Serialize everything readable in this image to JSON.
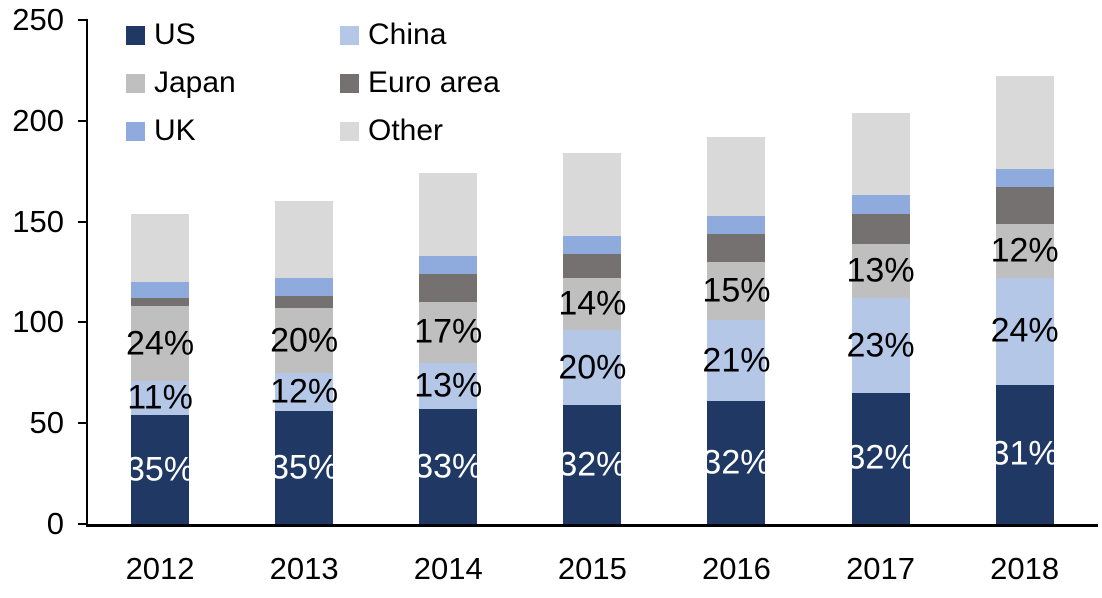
{
  "chart_data": {
    "type": "bar",
    "stacked": true,
    "title": "",
    "xlabel": "",
    "ylabel": "",
    "categories": [
      "2012",
      "2013",
      "2014",
      "2015",
      "2016",
      "2017",
      "2018"
    ],
    "series": [
      {
        "name": "US",
        "color": "#1F3864",
        "values": [
          54,
          56,
          57,
          59,
          61,
          65,
          69
        ],
        "labels": [
          "35%",
          "35%",
          "33%",
          "32%",
          "32%",
          "32%",
          "31%"
        ],
        "label_color": "#FFFFFF"
      },
      {
        "name": "China",
        "color": "#B4C7E7",
        "values": [
          17,
          19,
          23,
          37,
          40,
          47,
          53
        ],
        "labels": [
          "11%",
          "12%",
          "13%",
          "20%",
          "21%",
          "23%",
          "24%"
        ],
        "label_color": "#000000"
      },
      {
        "name": "Japan",
        "color": "#BFBFBF",
        "values": [
          37,
          32,
          30,
          26,
          29,
          27,
          27
        ],
        "labels": [
          "24%",
          "20%",
          "17%",
          "14%",
          "15%",
          "13%",
          "12%"
        ],
        "label_color": "#000000"
      },
      {
        "name": "Euro area",
        "color": "#767171",
        "values": [
          4,
          6,
          14,
          12,
          14,
          15,
          18
        ]
      },
      {
        "name": "UK",
        "color": "#8FAADC",
        "values": [
          8,
          9,
          9,
          9,
          9,
          9,
          9
        ]
      },
      {
        "name": "Other",
        "color": "#D9D9D9",
        "values": [
          34,
          38,
          41,
          41,
          39,
          41,
          46
        ]
      }
    ],
    "totals": [
      154,
      160,
      174,
      184,
      192,
      204,
      222
    ],
    "ylim": [
      0,
      250
    ],
    "yticks": [
      0,
      50,
      100,
      150,
      200,
      250
    ],
    "grid": false,
    "legend": {
      "position": "top-left",
      "columns": 2,
      "order": [
        "US",
        "China",
        "Japan",
        "Euro area",
        "UK",
        "Other"
      ]
    },
    "axis_color": "#000000",
    "background_color": "#FFFFFF"
  }
}
